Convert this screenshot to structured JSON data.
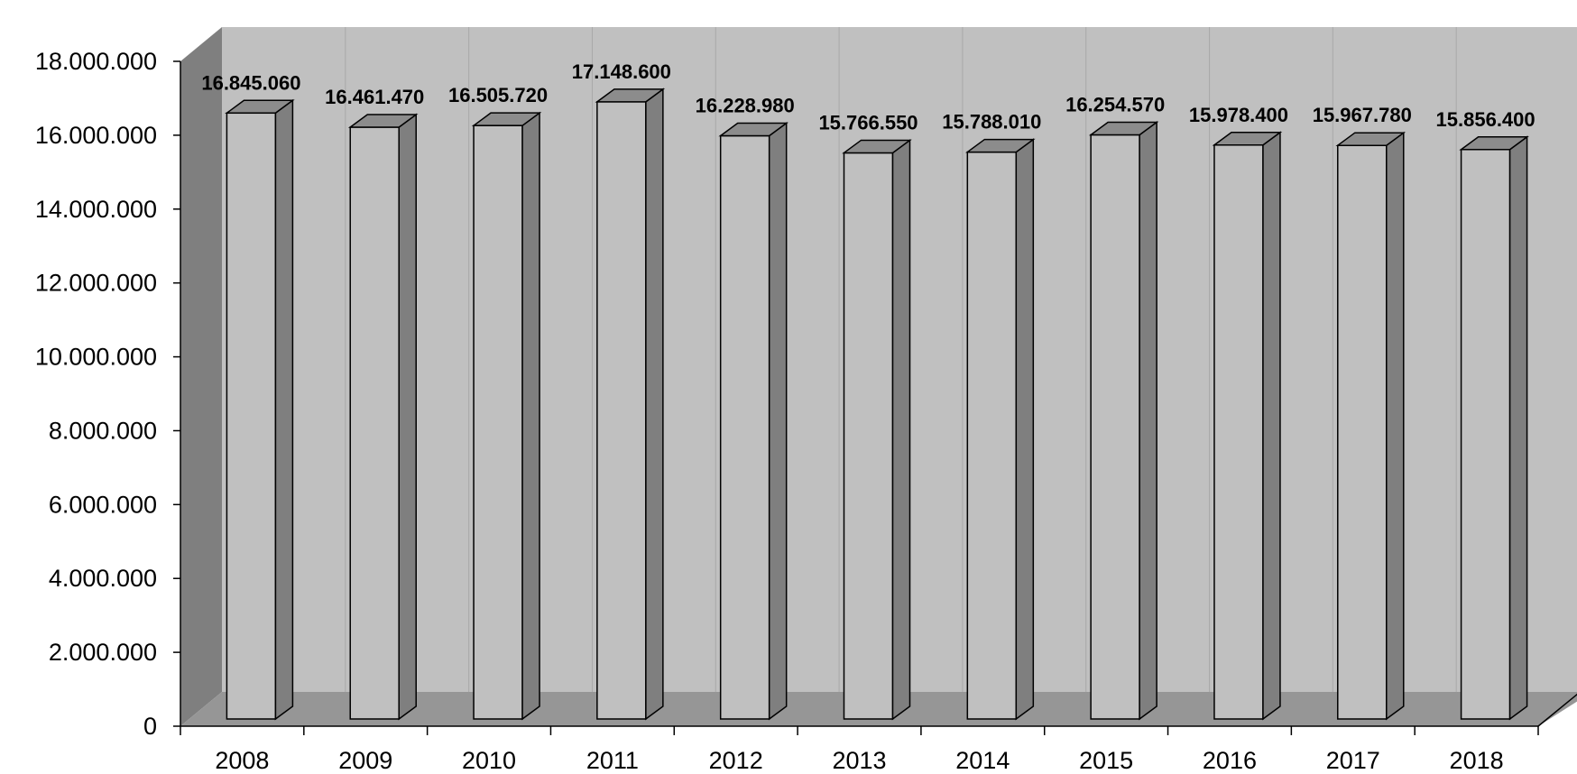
{
  "chart_data": {
    "type": "bar",
    "title": "",
    "xlabel": "",
    "ylabel": "",
    "categories": [
      "2008",
      "2009",
      "2010",
      "2011",
      "2012",
      "2013",
      "2014",
      "2015",
      "2016",
      "2017",
      "2018"
    ],
    "series": [
      {
        "values": [
          16845060,
          16461470,
          16505720,
          17148600,
          16228980,
          15766550,
          15788010,
          16254570,
          15978400,
          15967780,
          15856400
        ],
        "data_labels": [
          "16.845.060",
          "16.461.470",
          "16.505.720",
          "17.148.600",
          "16.228.980",
          "15.766.550",
          "15.788.010",
          "16.254.570",
          "15.978.400",
          "15.967.780",
          "15.856.400"
        ]
      }
    ],
    "ylim": [
      0,
      18000000
    ],
    "y_ticks": [
      0,
      2000000,
      4000000,
      6000000,
      8000000,
      10000000,
      12000000,
      14000000,
      16000000,
      18000000
    ],
    "y_tick_labels": [
      "0",
      "2.000.000",
      "4.000.000",
      "6.000.000",
      "8.000.000",
      "10.000.000",
      "12.000.000",
      "14.000.000",
      "16.000.000",
      "18.000.000"
    ],
    "grid": false,
    "legend": "none",
    "style": "3d",
    "colors": {
      "bar_front": "#c0c0c0",
      "bar_side": "#7f7f7f",
      "bar_top": "#8c8c8c",
      "back_wall": "#c0c0c0",
      "side_wall": "#7f7f7f",
      "floor": "#969696",
      "outline": "#000000"
    }
  }
}
